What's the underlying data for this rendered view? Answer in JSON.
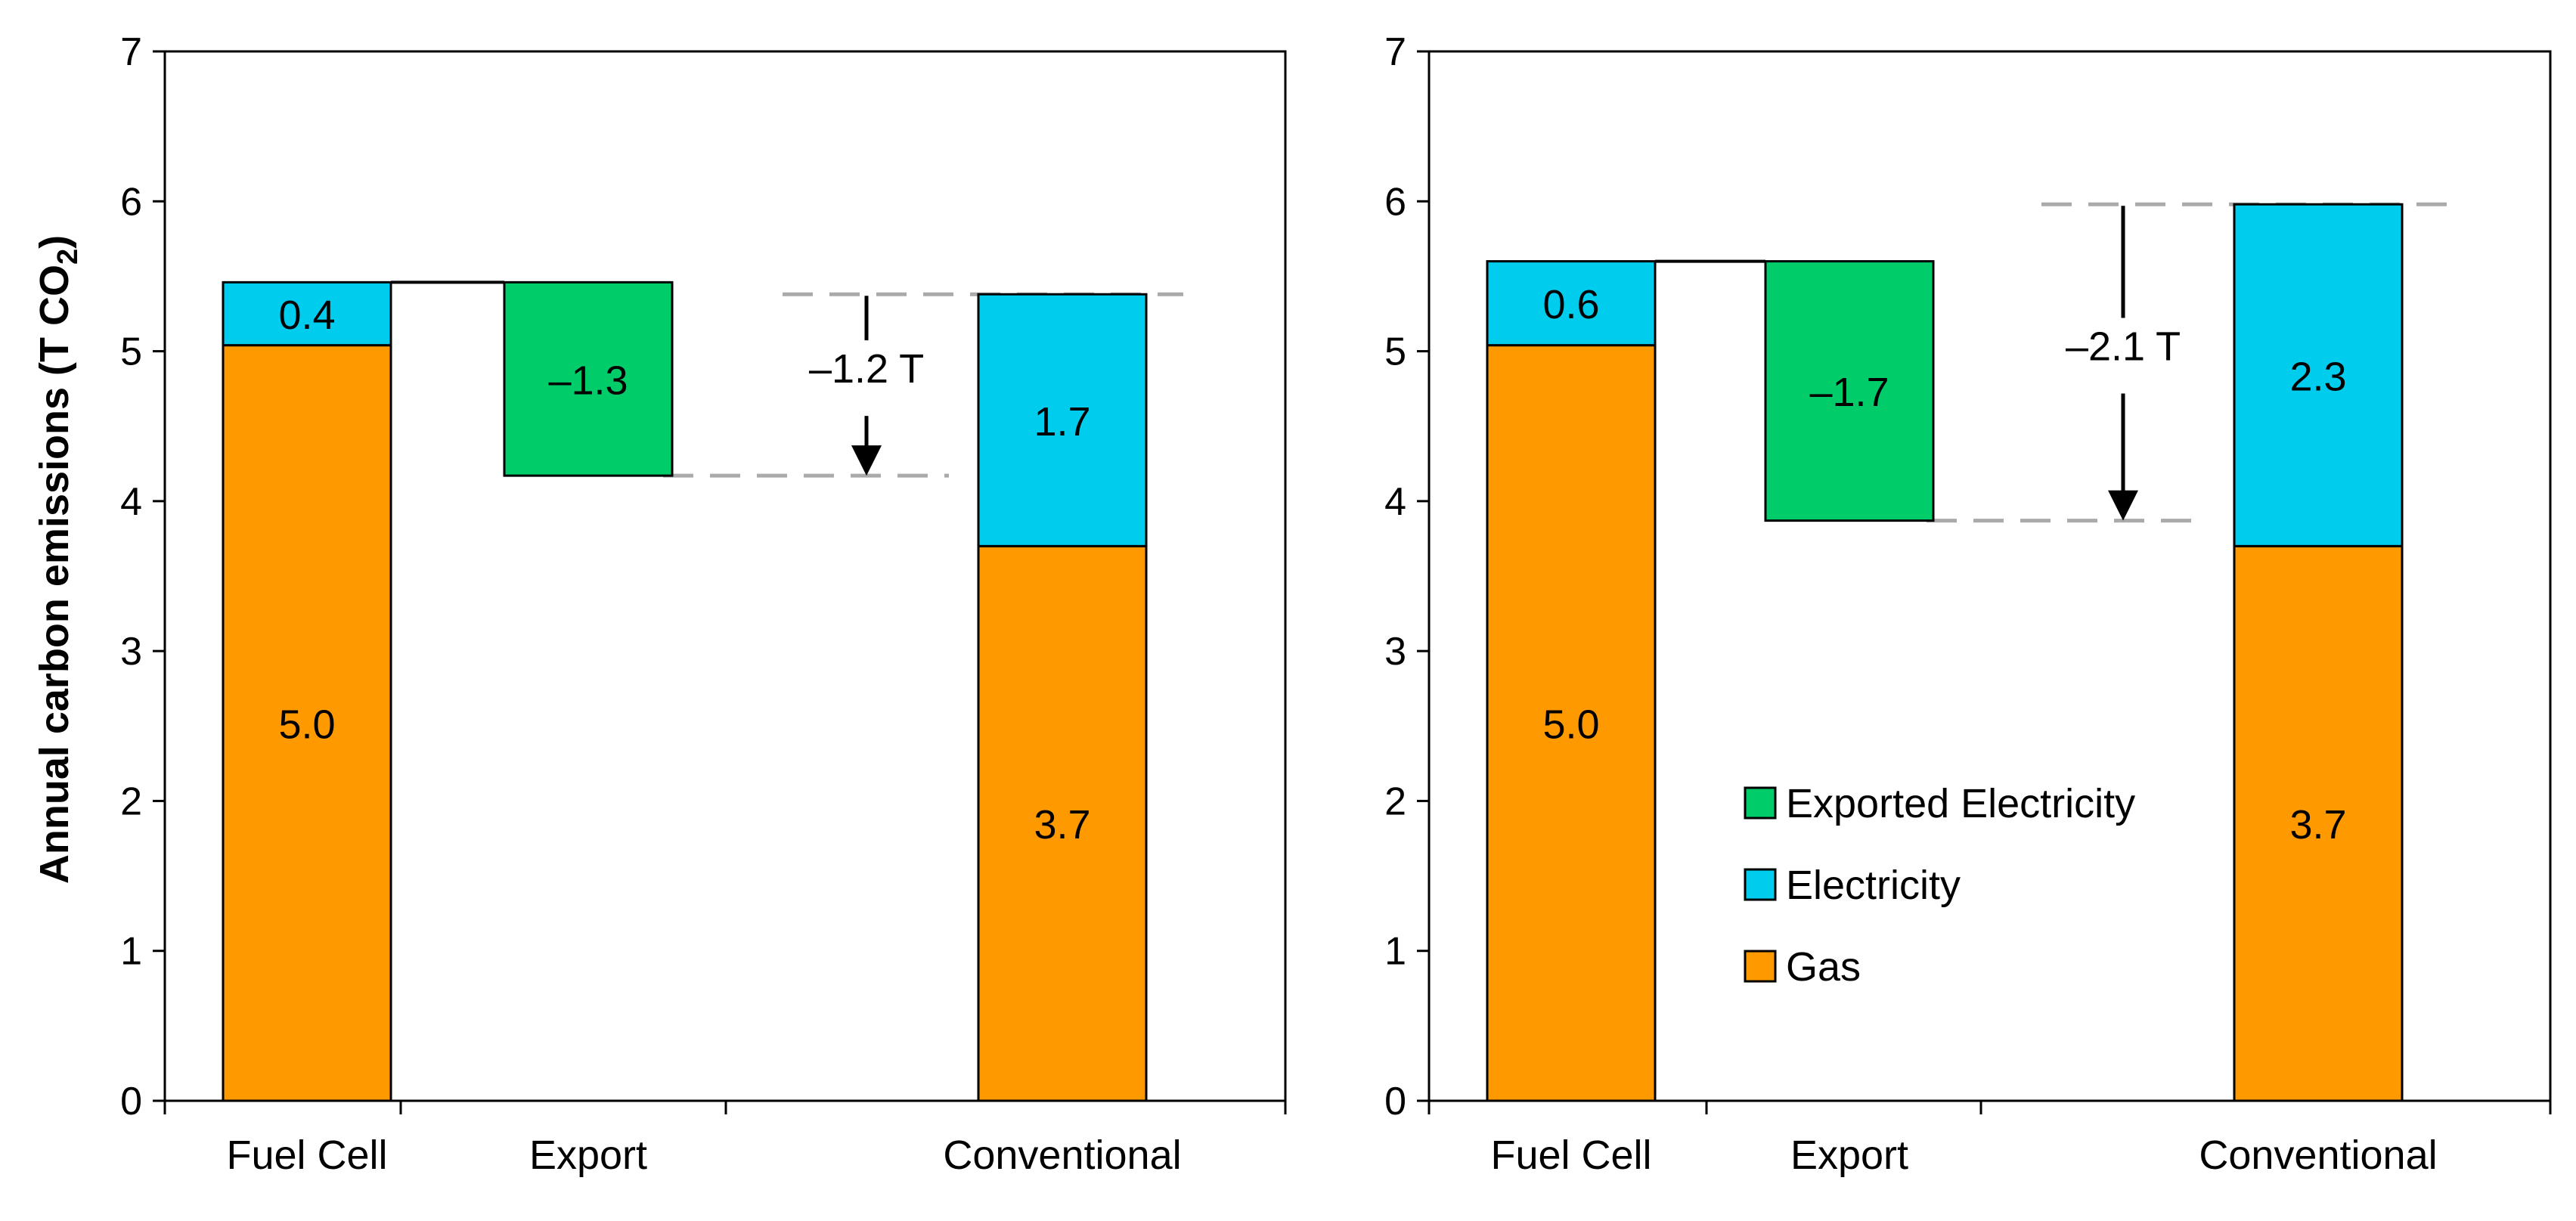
{
  "colors": {
    "gas": "#ff9900",
    "electricity": "#00ccee",
    "exported": "#00cc6a",
    "axis": "#000000",
    "guide": "#aaaaaa"
  },
  "ylabel": "Annual carbon emissions (T CO",
  "ylabel_sub": "2",
  "ylabel_tail": ")",
  "legend": {
    "exported": "Exported Electricity",
    "electricity": "Electricity",
    "gas": "Gas"
  },
  "chart_data": [
    {
      "type": "bar",
      "title": "",
      "ylim": [
        0,
        7
      ],
      "yticks": [
        "0",
        "1",
        "2",
        "3",
        "4",
        "5",
        "6",
        "7"
      ],
      "categories": [
        "Fuel Cell",
        "Export",
        "Conventional"
      ],
      "fuel_cell": {
        "gas": 5.04,
        "electricity": 0.42,
        "gas_label": "5.0",
        "electricity_label": "0.4"
      },
      "export": {
        "top": 5.46,
        "bottom": 4.17,
        "label": "–1.3"
      },
      "conventional": {
        "gas": 3.7,
        "electricity": 1.68,
        "gas_label": "3.7",
        "electricity_label": "1.7"
      },
      "difference": {
        "value": -1.2,
        "label": "–1.2 T"
      }
    },
    {
      "type": "bar",
      "title": "",
      "ylim": [
        0,
        7
      ],
      "yticks": [
        "0",
        "1",
        "2",
        "3",
        "4",
        "5",
        "6",
        "7"
      ],
      "categories": [
        "Fuel Cell",
        "Export",
        "Conventional"
      ],
      "fuel_cell": {
        "gas": 5.04,
        "electricity": 0.56,
        "gas_label": "5.0",
        "electricity_label": "0.6"
      },
      "export": {
        "top": 5.6,
        "bottom": 3.87,
        "label": "–1.7"
      },
      "conventional": {
        "gas": 3.7,
        "electricity": 2.28,
        "gas_label": "3.7",
        "electricity_label": "2.3"
      },
      "difference": {
        "value": -2.1,
        "label": "–2.1 T"
      }
    }
  ]
}
